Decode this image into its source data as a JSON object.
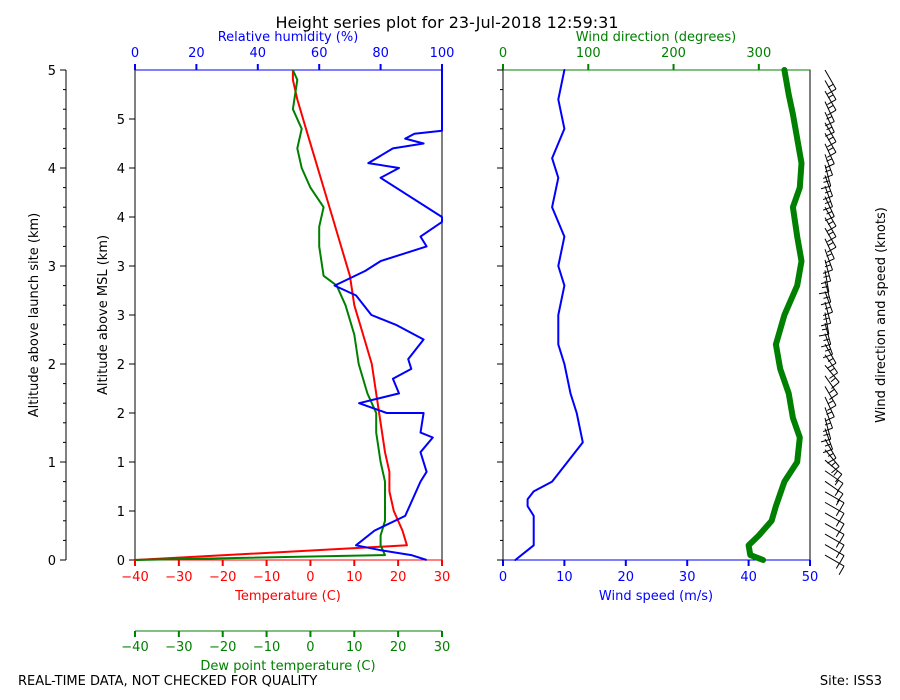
{
  "title": "Height series plot for 23-Jul-2018 12:59:31",
  "footer": {
    "left": "REAL-TIME DATA, NOT CHECKED FOR QUALITY",
    "right": "Site: ISS3"
  },
  "colors": {
    "temperature": "#ff0000",
    "humidity": "#0000ff",
    "dewpoint": "#008000",
    "wind_speed": "#0000ff",
    "wind_direction": "#008000",
    "axis": "#000000"
  },
  "chart_data": [
    {
      "type": "line",
      "name": "thermodynamic-panel",
      "ylabel_outer": "Altitude above launch site (km)",
      "ylabel_inner": "Altitude above MSL (km)",
      "outer_yticks": [
        "0",
        "1",
        "2",
        "3",
        "4",
        "5"
      ],
      "outer_ylim": [
        0,
        5
      ],
      "inner_yticks": [
        {
          "label": "0",
          "outer_km": 0.0
        },
        {
          "label": "1",
          "outer_km": 0.5
        },
        {
          "label": "1",
          "outer_km": 1.0
        },
        {
          "label": "2",
          "outer_km": 1.5
        },
        {
          "label": "2",
          "outer_km": 2.0
        },
        {
          "label": "3",
          "outer_km": 2.5
        },
        {
          "label": "3",
          "outer_km": 3.0
        },
        {
          "label": "4",
          "outer_km": 3.5
        },
        {
          "label": "4",
          "outer_km": 4.0
        },
        {
          "label": "5",
          "outer_km": 4.5
        }
      ],
      "temperature_axis": {
        "label": "Temperature (C)",
        "ticks": [
          "−40",
          "−30",
          "−20",
          "−10",
          "0",
          "10",
          "20",
          "30"
        ],
        "xlim": [
          -40,
          30
        ]
      },
      "humidity_axis": {
        "label": "Relative humidity (%)",
        "ticks": [
          "0",
          "20",
          "40",
          "60",
          "80",
          "100"
        ],
        "xlim": [
          0,
          100
        ]
      },
      "dewpoint_axis": {
        "label": "Dew point temperature (C)",
        "ticks": [
          "−40",
          "−30",
          "−20",
          "−10",
          "0",
          "10",
          "20",
          "30"
        ],
        "xlim": [
          -40,
          30
        ]
      },
      "series": [
        {
          "name": "Temperature",
          "axis": "temperature",
          "color": "#ff0000",
          "points": [
            [
              -40,
              0
            ],
            [
              22,
              0.15
            ],
            [
              21,
              0.3
            ],
            [
              19,
              0.5
            ],
            [
              18,
              0.7
            ],
            [
              18,
              0.9
            ],
            [
              17,
              1.1
            ],
            [
              16,
              1.4
            ],
            [
              15,
              1.7
            ],
            [
              14,
              2.0
            ],
            [
              12,
              2.3
            ],
            [
              10,
              2.6
            ],
            [
              9,
              2.9
            ],
            [
              7,
              3.2
            ],
            [
              5,
              3.5
            ],
            [
              3,
              3.8
            ],
            [
              1,
              4.1
            ],
            [
              -1,
              4.4
            ],
            [
              -3,
              4.7
            ],
            [
              -4,
              4.9
            ],
            [
              -4,
              5.0
            ]
          ]
        },
        {
          "name": "Dew point",
          "axis": "dewpoint",
          "color": "#008000",
          "points": [
            [
              -40,
              0
            ],
            [
              17,
              0.05
            ],
            [
              16,
              0.15
            ],
            [
              16,
              0.25
            ],
            [
              17,
              0.4
            ],
            [
              17,
              0.6
            ],
            [
              17,
              0.8
            ],
            [
              16,
              1.0
            ],
            [
              15,
              1.3
            ],
            [
              15,
              1.5
            ],
            [
              13,
              1.7
            ],
            [
              11,
              2.0
            ],
            [
              10,
              2.3
            ],
            [
              8,
              2.6
            ],
            [
              6,
              2.8
            ],
            [
              3,
              2.9
            ],
            [
              2,
              3.2
            ],
            [
              2,
              3.4
            ],
            [
              3,
              3.6
            ],
            [
              0,
              3.8
            ],
            [
              -2,
              4.0
            ],
            [
              -3,
              4.2
            ],
            [
              -2,
              4.4
            ],
            [
              -4,
              4.6
            ],
            [
              -3,
              4.9
            ],
            [
              -4,
              5.0
            ]
          ]
        },
        {
          "name": "Relative humidity",
          "axis": "humidity",
          "color": "#0000ff",
          "points": [
            [
              100,
              5.0
            ],
            [
              100,
              4.5
            ],
            [
              100,
              4.38
            ],
            [
              91,
              4.35
            ],
            [
              88,
              4.3
            ],
            [
              94,
              4.25
            ],
            [
              84,
              4.2
            ],
            [
              76,
              4.05
            ],
            [
              86,
              4.0
            ],
            [
              80,
              3.9
            ],
            [
              100,
              3.5
            ],
            [
              100,
              3.45
            ],
            [
              93,
              3.3
            ],
            [
              95,
              3.2
            ],
            [
              80,
              3.05
            ],
            [
              75,
              2.95
            ],
            [
              65,
              2.8
            ],
            [
              72,
              2.7
            ],
            [
              77,
              2.5
            ],
            [
              85,
              2.4
            ],
            [
              94,
              2.25
            ],
            [
              89,
              2.05
            ],
            [
              90,
              1.95
            ],
            [
              84,
              1.85
            ],
            [
              86,
              1.7
            ],
            [
              73,
              1.6
            ],
            [
              82,
              1.5
            ],
            [
              94,
              1.5
            ],
            [
              93,
              1.3
            ],
            [
              97,
              1.25
            ],
            [
              93,
              1.1
            ],
            [
              95,
              0.9
            ],
            [
              93,
              0.8
            ],
            [
              88,
              0.45
            ],
            [
              78,
              0.3
            ],
            [
              72,
              0.15
            ],
            [
              80,
              0.1
            ],
            [
              90,
              0.05
            ],
            [
              95,
              0.0
            ]
          ]
        }
      ]
    },
    {
      "type": "line",
      "name": "wind-panel",
      "wind_speed_axis": {
        "label": "Wind speed (m/s)",
        "ticks": [
          "0",
          "10",
          "20",
          "30",
          "40",
          "50"
        ],
        "xlim": [
          0,
          50
        ]
      },
      "wind_direction_axis": {
        "label": "Wind direction (degrees)",
        "ticks": [
          "0",
          "100",
          "200",
          "300"
        ],
        "xlim": [
          0,
          360
        ]
      },
      "barb_label": "Wind direction and speed (knots)",
      "series": [
        {
          "name": "Wind speed",
          "axis": "wind_speed",
          "color": "#0000ff",
          "points": [
            [
              2,
              0.0
            ],
            [
              4,
              0.1
            ],
            [
              5,
              0.15
            ],
            [
              5,
              0.25
            ],
            [
              5,
              0.3
            ],
            [
              5,
              0.45
            ],
            [
              4,
              0.55
            ],
            [
              4,
              0.62
            ],
            [
              5,
              0.7
            ],
            [
              8,
              0.8
            ],
            [
              13,
              1.2
            ],
            [
              12,
              1.5
            ],
            [
              11,
              1.7
            ],
            [
              10,
              2.0
            ],
            [
              9,
              2.2
            ],
            [
              9,
              2.5
            ],
            [
              10,
              2.8
            ],
            [
              9,
              3.0
            ],
            [
              10,
              3.3
            ],
            [
              8,
              3.6
            ],
            [
              9,
              3.9
            ],
            [
              8,
              4.1
            ],
            [
              10,
              4.4
            ],
            [
              9,
              4.7
            ],
            [
              10,
              5.0
            ]
          ]
        },
        {
          "name": "Wind direction",
          "axis": "wind_direction",
          "color": "#008000",
          "points": [
            [
              305,
              0.0
            ],
            [
              290,
              0.05
            ],
            [
              288,
              0.15
            ],
            [
              300,
              0.25
            ],
            [
              315,
              0.4
            ],
            [
              320,
              0.55
            ],
            [
              330,
              0.8
            ],
            [
              345,
              1.0
            ],
            [
              348,
              1.25
            ],
            [
              340,
              1.45
            ],
            [
              335,
              1.7
            ],
            [
              325,
              1.95
            ],
            [
              320,
              2.2
            ],
            [
              330,
              2.5
            ],
            [
              345,
              2.8
            ],
            [
              350,
              3.05
            ],
            [
              345,
              3.3
            ],
            [
              340,
              3.6
            ],
            [
              348,
              3.8
            ],
            [
              350,
              4.05
            ],
            [
              345,
              4.3
            ],
            [
              340,
              4.55
            ],
            [
              335,
              4.75
            ],
            [
              330,
              5.0
            ]
          ]
        }
      ],
      "barbs": {
        "direction_deg": [
          300,
          300,
          300,
          300,
          300,
          300,
          300,
          305,
          305,
          310,
          320,
          330,
          340,
          345,
          340,
          335,
          330,
          325,
          320,
          325,
          330,
          340,
          345,
          350,
          345,
          340,
          345,
          350,
          345,
          340,
          335,
          330,
          330,
          330,
          335,
          340,
          340,
          345,
          340,
          335,
          330,
          330,
          335,
          335,
          330,
          330,
          330
        ]
      }
    }
  ]
}
